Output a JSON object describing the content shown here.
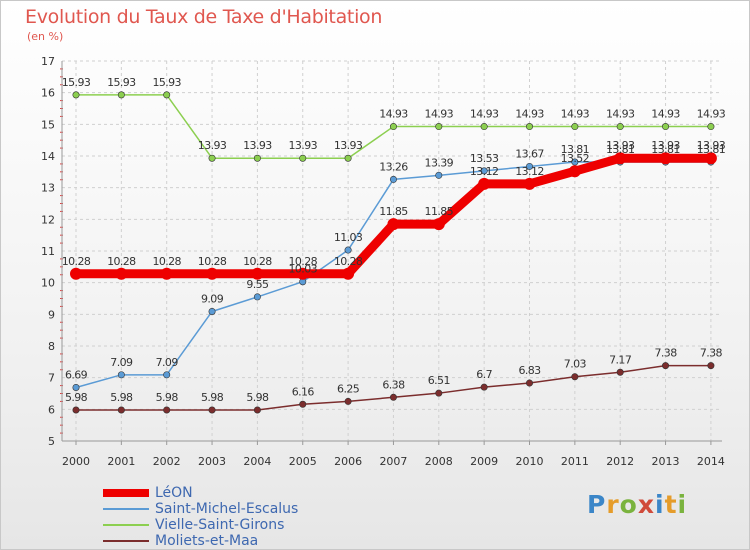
{
  "title": "Evolution du Taux de Taxe d'Habitation",
  "unit": "(en %)",
  "logo": {
    "letters": [
      "P",
      "r",
      "o",
      "x",
      "i",
      "t",
      "i"
    ],
    "colors": [
      "#3b86c8",
      "#e59c2a",
      "#7ab33e",
      "#d04a3a",
      "#3b86c8",
      "#e59c2a",
      "#7ab33e"
    ]
  },
  "chart_data": {
    "type": "line",
    "title": "Evolution du Taux de Taxe d'Habitation",
    "ylabel": "(en %)",
    "xlabel": "",
    "ylim": [
      5,
      17
    ],
    "yticks": [
      "5",
      "6",
      "7",
      "8",
      "9",
      "10",
      "11",
      "12",
      "13",
      "14",
      "15",
      "16",
      "17"
    ],
    "x": [
      "2000",
      "2001",
      "2002",
      "2003",
      "2004",
      "2005",
      "2006",
      "2007",
      "2008",
      "2009",
      "2010",
      "2011",
      "2012",
      "2013",
      "2014"
    ],
    "grid": true,
    "legend_position": "bottom-left",
    "series": [
      {
        "name": "LéON",
        "color": "#ee0000",
        "emphasis": true,
        "values": [
          10.28,
          10.28,
          10.28,
          10.28,
          10.28,
          10.28,
          10.28,
          11.85,
          11.85,
          13.12,
          13.12,
          13.52,
          13.93,
          13.93,
          13.93
        ],
        "labels": [
          "10.28",
          "10.28",
          "10.28",
          "10.28",
          "10.28",
          "10.28",
          "10.28",
          "11.85",
          "11.85",
          "13.12",
          "13.12",
          "13.52",
          "13.93",
          "13.93",
          "13.93"
        ]
      },
      {
        "name": "Saint-Michel-Escalus",
        "color": "#5b9bd5",
        "emphasis": false,
        "values": [
          6.69,
          7.09,
          7.09,
          9.09,
          9.55,
          10.03,
          11.03,
          13.26,
          13.39,
          13.53,
          13.67,
          13.81,
          13.81,
          13.81,
          13.81
        ],
        "labels": [
          "6.69",
          "7.09",
          "7.09",
          "9.09",
          "9.55",
          "10.03",
          "11.03",
          "13.26",
          "13.39",
          "13.53",
          "13.67",
          "13.81",
          "13.81",
          "13.81",
          "13.81"
        ]
      },
      {
        "name": "Vielle-Saint-Girons",
        "color": "#8ccf50",
        "emphasis": false,
        "values": [
          15.93,
          15.93,
          15.93,
          13.93,
          13.93,
          13.93,
          13.93,
          14.93,
          14.93,
          14.93,
          14.93,
          14.93,
          14.93,
          14.93,
          14.93
        ],
        "labels": [
          "15.93",
          "15.93",
          "15.93",
          "13.93",
          "13.93",
          "13.93",
          "13.93",
          "14.93",
          "14.93",
          "14.93",
          "14.93",
          "14.93",
          "14.93",
          "14.93",
          "14.93"
        ]
      },
      {
        "name": "Moliets-et-Maa",
        "color": "#7b2d2d",
        "emphasis": false,
        "values": [
          5.98,
          5.98,
          5.98,
          5.98,
          5.98,
          6.16,
          6.25,
          6.38,
          6.51,
          6.7,
          6.83,
          7.03,
          7.17,
          7.38,
          7.38
        ],
        "labels": [
          "5.98",
          "5.98",
          "5.98",
          "5.98",
          "5.98",
          "6.16",
          "6.25",
          "6.38",
          "6.51",
          "6.7",
          "6.83",
          "7.03",
          "7.17",
          "7.38",
          "7.38"
        ]
      }
    ]
  }
}
